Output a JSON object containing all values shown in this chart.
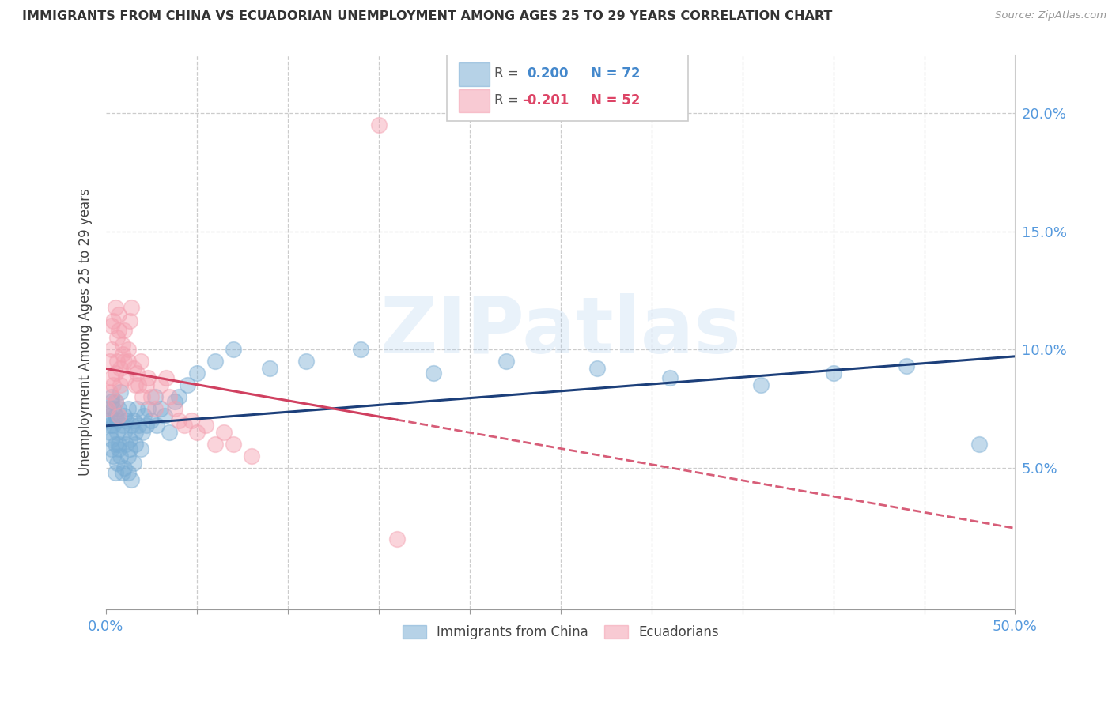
{
  "title": "IMMIGRANTS FROM CHINA VS ECUADORIAN UNEMPLOYMENT AMONG AGES 25 TO 29 YEARS CORRELATION CHART",
  "source": "Source: ZipAtlas.com",
  "ylabel": "Unemployment Among Ages 25 to 29 years",
  "xlim": [
    0.0,
    0.5
  ],
  "ylim": [
    -0.01,
    0.225
  ],
  "xticks": [
    0.0,
    0.05,
    0.1,
    0.15,
    0.2,
    0.25,
    0.3,
    0.35,
    0.4,
    0.45,
    0.5
  ],
  "xticklabels": [
    "0.0%",
    "",
    "",
    "",
    "",
    "",
    "",
    "",
    "",
    "",
    "50.0%"
  ],
  "yticks_right": [
    0.05,
    0.1,
    0.15,
    0.2
  ],
  "ytickslabels_right": [
    "5.0%",
    "10.0%",
    "15.0%",
    "20.0%"
  ],
  "blue_color": "#7aadd4",
  "pink_color": "#f4a0b0",
  "trend_blue": "#1c3f7a",
  "trend_pink": "#d04060",
  "blue_scatter_x": [
    0.001,
    0.001,
    0.002,
    0.002,
    0.002,
    0.003,
    0.003,
    0.003,
    0.003,
    0.004,
    0.004,
    0.004,
    0.005,
    0.005,
    0.005,
    0.005,
    0.006,
    0.006,
    0.006,
    0.007,
    0.007,
    0.007,
    0.008,
    0.008,
    0.009,
    0.009,
    0.01,
    0.01,
    0.01,
    0.011,
    0.011,
    0.012,
    0.012,
    0.012,
    0.013,
    0.013,
    0.014,
    0.014,
    0.015,
    0.015,
    0.016,
    0.016,
    0.017,
    0.018,
    0.019,
    0.02,
    0.021,
    0.022,
    0.023,
    0.025,
    0.027,
    0.028,
    0.03,
    0.032,
    0.035,
    0.038,
    0.04,
    0.045,
    0.05,
    0.06,
    0.07,
    0.09,
    0.11,
    0.14,
    0.18,
    0.22,
    0.27,
    0.31,
    0.36,
    0.4,
    0.44,
    0.48
  ],
  "blue_scatter_y": [
    0.07,
    0.075,
    0.068,
    0.072,
    0.065,
    0.078,
    0.062,
    0.08,
    0.058,
    0.075,
    0.068,
    0.055,
    0.072,
    0.06,
    0.078,
    0.048,
    0.065,
    0.07,
    0.052,
    0.06,
    0.075,
    0.058,
    0.055,
    0.082,
    0.048,
    0.068,
    0.065,
    0.072,
    0.05,
    0.07,
    0.06,
    0.055,
    0.048,
    0.075,
    0.062,
    0.058,
    0.068,
    0.045,
    0.07,
    0.052,
    0.065,
    0.06,
    0.075,
    0.068,
    0.058,
    0.065,
    0.072,
    0.068,
    0.075,
    0.07,
    0.08,
    0.068,
    0.075,
    0.072,
    0.065,
    0.078,
    0.08,
    0.085,
    0.09,
    0.095,
    0.1,
    0.092,
    0.095,
    0.1,
    0.09,
    0.095,
    0.092,
    0.088,
    0.085,
    0.09,
    0.093,
    0.06
  ],
  "pink_scatter_x": [
    0.001,
    0.002,
    0.002,
    0.003,
    0.003,
    0.003,
    0.004,
    0.004,
    0.005,
    0.005,
    0.005,
    0.006,
    0.006,
    0.007,
    0.007,
    0.007,
    0.008,
    0.008,
    0.009,
    0.009,
    0.01,
    0.01,
    0.011,
    0.012,
    0.012,
    0.013,
    0.014,
    0.015,
    0.016,
    0.017,
    0.018,
    0.019,
    0.02,
    0.022,
    0.023,
    0.025,
    0.027,
    0.03,
    0.033,
    0.035,
    0.038,
    0.04,
    0.043,
    0.047,
    0.05,
    0.055,
    0.06,
    0.065,
    0.07,
    0.08,
    0.15,
    0.16
  ],
  "pink_scatter_y": [
    0.075,
    0.082,
    0.095,
    0.088,
    0.1,
    0.11,
    0.085,
    0.112,
    0.09,
    0.078,
    0.118,
    0.095,
    0.105,
    0.108,
    0.115,
    0.072,
    0.092,
    0.085,
    0.098,
    0.102,
    0.095,
    0.108,
    0.088,
    0.095,
    0.1,
    0.112,
    0.118,
    0.092,
    0.085,
    0.09,
    0.085,
    0.095,
    0.08,
    0.085,
    0.088,
    0.08,
    0.075,
    0.085,
    0.088,
    0.08,
    0.075,
    0.07,
    0.068,
    0.07,
    0.065,
    0.068,
    0.06,
    0.065,
    0.06,
    0.055,
    0.195,
    0.02
  ],
  "watermark": "ZIPatlas",
  "background_color": "#ffffff",
  "legend_box_color": "#cccccc"
}
